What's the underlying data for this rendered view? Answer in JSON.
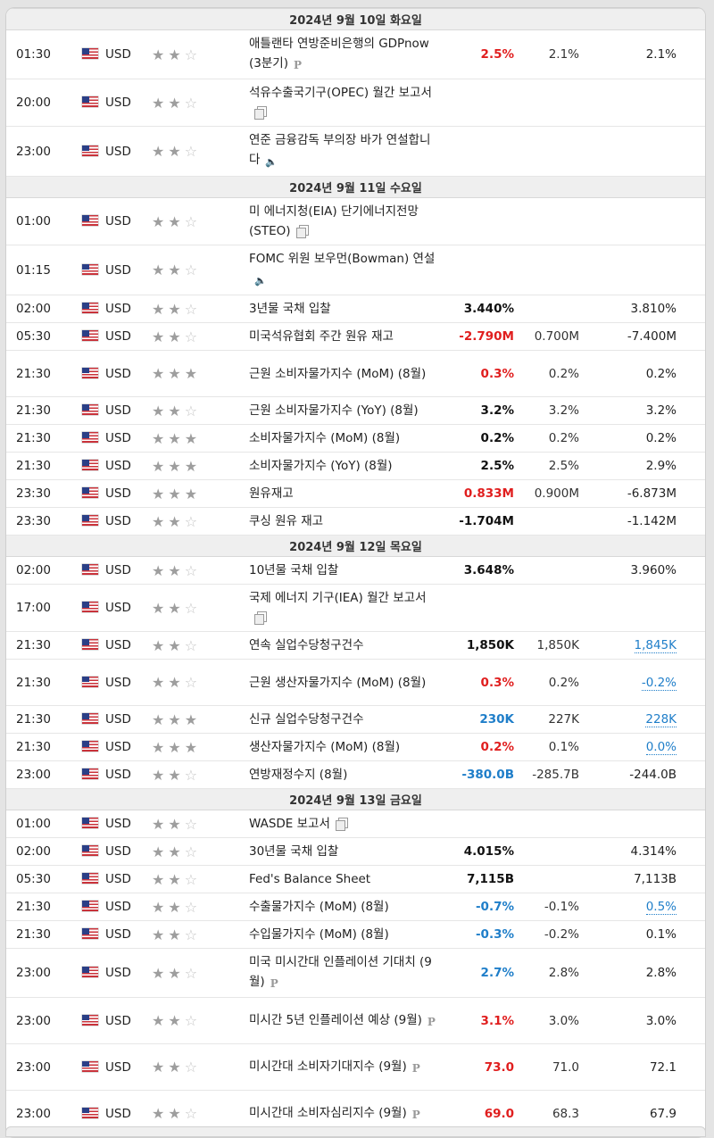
{
  "days": [
    {
      "date": "2024년 9월 10일 화요일",
      "events": [
        {
          "time": "01:30",
          "currency": "USD",
          "stars": 2,
          "event": "애틀랜타 연방준비은행의 GDPnow (3분기)",
          "icon": "p-icon",
          "actual": "2.5%",
          "actual_color": "red",
          "forecast": "2.1%",
          "previous": "2.1%",
          "prev_revised": false
        },
        {
          "time": "20:00",
          "currency": "USD",
          "stars": 2,
          "event": "석유수출국기구(OPEC) 월간 보고서",
          "icon": "document-icon",
          "actual": "",
          "actual_color": "black",
          "forecast": "",
          "previous": "",
          "prev_revised": false
        },
        {
          "time": "23:00",
          "currency": "USD",
          "stars": 2,
          "event": "연준 금융감독 부의장 바가 연설합니다",
          "icon": "speaker-icon",
          "actual": "",
          "actual_color": "black",
          "forecast": "",
          "previous": "",
          "prev_revised": false
        }
      ]
    },
    {
      "date": "2024년 9월 11일 수요일",
      "events": [
        {
          "time": "01:00",
          "currency": "USD",
          "stars": 2,
          "event": "미 에너지청(EIA) 단기에너지전망(STEO)",
          "icon": "document-icon",
          "actual": "",
          "actual_color": "black",
          "forecast": "",
          "previous": "",
          "prev_revised": false
        },
        {
          "time": "01:15",
          "currency": "USD",
          "stars": 2,
          "event": "FOMC 위원 보우먼(Bowman) 연설",
          "icon": "speaker-icon",
          "actual": "",
          "actual_color": "black",
          "forecast": "",
          "previous": "",
          "prev_revised": false
        },
        {
          "time": "02:00",
          "currency": "USD",
          "stars": 2,
          "event": "3년물 국채 입찰",
          "icon": "",
          "actual": "3.440%",
          "actual_color": "black",
          "forecast": "",
          "previous": "3.810%",
          "prev_revised": false
        },
        {
          "time": "05:30",
          "currency": "USD",
          "stars": 2,
          "event": "미국석유협회 주간 원유 재고",
          "icon": "",
          "actual": "-2.790M",
          "actual_color": "red",
          "forecast": "0.700M",
          "previous": "-7.400M",
          "prev_revised": false
        },
        {
          "time": "21:30",
          "currency": "USD",
          "stars": 3,
          "event": "근원 소비자물가지수 (MoM) (8월)",
          "icon": "",
          "actual": "0.3%",
          "actual_color": "red",
          "forecast": "0.2%",
          "previous": "0.2%",
          "prev_revised": false
        },
        {
          "time": "21:30",
          "currency": "USD",
          "stars": 2,
          "event": "근원 소비자물가지수 (YoY) (8월)",
          "icon": "",
          "actual": "3.2%",
          "actual_color": "black",
          "forecast": "3.2%",
          "previous": "3.2%",
          "prev_revised": false
        },
        {
          "time": "21:30",
          "currency": "USD",
          "stars": 3,
          "event": "소비자물가지수 (MoM) (8월)",
          "icon": "",
          "actual": "0.2%",
          "actual_color": "black",
          "forecast": "0.2%",
          "previous": "0.2%",
          "prev_revised": false
        },
        {
          "time": "21:30",
          "currency": "USD",
          "stars": 3,
          "event": "소비자물가지수 (YoY) (8월)",
          "icon": "",
          "actual": "2.5%",
          "actual_color": "black",
          "forecast": "2.5%",
          "previous": "2.9%",
          "prev_revised": false
        },
        {
          "time": "23:30",
          "currency": "USD",
          "stars": 3,
          "event": "원유재고",
          "icon": "",
          "actual": "0.833M",
          "actual_color": "red",
          "forecast": "0.900M",
          "previous": "-6.873M",
          "prev_revised": false
        },
        {
          "time": "23:30",
          "currency": "USD",
          "stars": 2,
          "event": "쿠싱 원유 재고",
          "icon": "",
          "actual": "-1.704M",
          "actual_color": "black",
          "forecast": "",
          "previous": "-1.142M",
          "prev_revised": false
        }
      ]
    },
    {
      "date": "2024년 9월 12일 목요일",
      "events": [
        {
          "time": "02:00",
          "currency": "USD",
          "stars": 2,
          "event": "10년물 국채 입찰",
          "icon": "",
          "actual": "3.648%",
          "actual_color": "black",
          "forecast": "",
          "previous": "3.960%",
          "prev_revised": false
        },
        {
          "time": "17:00",
          "currency": "USD",
          "stars": 2,
          "event": "국제 에너지 기구(IEA) 월간 보고서",
          "icon": "document-icon",
          "actual": "",
          "actual_color": "black",
          "forecast": "",
          "previous": "",
          "prev_revised": false
        },
        {
          "time": "21:30",
          "currency": "USD",
          "stars": 2,
          "event": "연속 실업수당청구건수",
          "icon": "",
          "actual": "1,850K",
          "actual_color": "black",
          "forecast": "1,850K",
          "previous": "1,845K",
          "prev_revised": true
        },
        {
          "time": "21:30",
          "currency": "USD",
          "stars": 2,
          "event": "근원 생산자물가지수 (MoM) (8월)",
          "icon": "",
          "actual": "0.3%",
          "actual_color": "red",
          "forecast": "0.2%",
          "previous": "-0.2%",
          "prev_revised": true
        },
        {
          "time": "21:30",
          "currency": "USD",
          "stars": 3,
          "event": "신규 실업수당청구건수",
          "icon": "",
          "actual": "230K",
          "actual_color": "blue",
          "forecast": "227K",
          "previous": "228K",
          "prev_revised": true
        },
        {
          "time": "21:30",
          "currency": "USD",
          "stars": 3,
          "event": "생산자물가지수 (MoM) (8월)",
          "icon": "",
          "actual": "0.2%",
          "actual_color": "red",
          "forecast": "0.1%",
          "previous": "0.0%",
          "prev_revised": true
        },
        {
          "time": "23:00",
          "currency": "USD",
          "stars": 2,
          "event": "연방재정수지 (8월)",
          "icon": "",
          "actual": "-380.0B",
          "actual_color": "blue",
          "forecast": "-285.7B",
          "previous": "-244.0B",
          "prev_revised": false
        }
      ]
    },
    {
      "date": "2024년 9월 13일 금요일",
      "events": [
        {
          "time": "01:00",
          "currency": "USD",
          "stars": 2,
          "event": "WASDE 보고서",
          "icon": "document-icon",
          "actual": "",
          "actual_color": "black",
          "forecast": "",
          "previous": "",
          "prev_revised": false
        },
        {
          "time": "02:00",
          "currency": "USD",
          "stars": 2,
          "event": "30년물 국채 입찰",
          "icon": "",
          "actual": "4.015%",
          "actual_color": "black",
          "forecast": "",
          "previous": "4.314%",
          "prev_revised": false
        },
        {
          "time": "05:30",
          "currency": "USD",
          "stars": 2,
          "event": "Fed's Balance Sheet",
          "icon": "",
          "actual": "7,115B",
          "actual_color": "black",
          "forecast": "",
          "previous": "7,113B",
          "prev_revised": false
        },
        {
          "time": "21:30",
          "currency": "USD",
          "stars": 2,
          "event": "수출물가지수 (MoM) (8월)",
          "icon": "",
          "actual": "-0.7%",
          "actual_color": "blue",
          "forecast": "-0.1%",
          "previous": "0.5%",
          "prev_revised": true
        },
        {
          "time": "21:30",
          "currency": "USD",
          "stars": 2,
          "event": "수입물가지수 (MoM) (8월)",
          "icon": "",
          "actual": "-0.3%",
          "actual_color": "blue",
          "forecast": "-0.2%",
          "previous": "0.1%",
          "prev_revised": false
        },
        {
          "time": "23:00",
          "currency": "USD",
          "stars": 2,
          "event": "미국 미시간대 인플레이션 기대치 (9월)",
          "icon": "p-icon",
          "actual": "2.7%",
          "actual_color": "blue",
          "forecast": "2.8%",
          "previous": "2.8%",
          "prev_revised": false
        },
        {
          "time": "23:00",
          "currency": "USD",
          "stars": 2,
          "event": "미시간 5년 인플레이션 예상 (9월)",
          "icon": "p-icon",
          "actual": "3.1%",
          "actual_color": "red",
          "forecast": "3.0%",
          "previous": "3.0%",
          "prev_revised": false
        },
        {
          "time": "23:00",
          "currency": "USD",
          "stars": 2,
          "event": "미시간대 소비자기대지수 (9월)",
          "icon": "p-icon",
          "actual": "73.0",
          "actual_color": "red",
          "forecast": "71.0",
          "previous": "72.1",
          "prev_revised": false
        },
        {
          "time": "23:00",
          "currency": "USD",
          "stars": 2,
          "event": "미시간대 소비자심리지수 (9월)",
          "icon": "p-icon",
          "actual": "69.0",
          "actual_color": "red",
          "forecast": "68.3",
          "previous": "67.9",
          "prev_revised": false
        }
      ]
    }
  ],
  "colors": {
    "red": "#e01e1e",
    "blue": "#1f7ec9",
    "black": "#111111"
  }
}
